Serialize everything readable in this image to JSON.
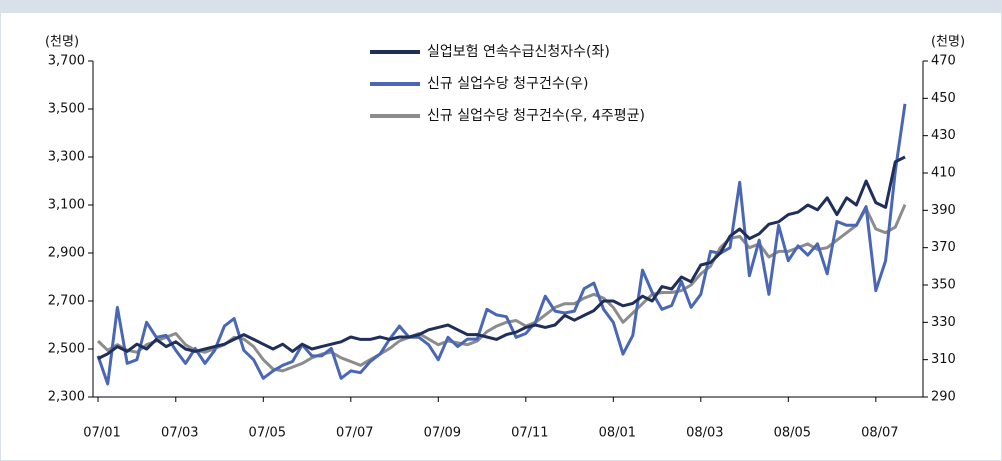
{
  "chart_data": {
    "type": "line",
    "y_label": "(천명)",
    "y2_label": "(천명)",
    "categories": [
      "07/01",
      null,
      null,
      null,
      null,
      null,
      null,
      null,
      "07/03",
      null,
      null,
      null,
      null,
      null,
      null,
      null,
      null,
      "07/05",
      null,
      null,
      null,
      null,
      null,
      null,
      null,
      null,
      "07/07",
      null,
      null,
      null,
      null,
      null,
      null,
      null,
      null,
      "07/09",
      null,
      null,
      null,
      null,
      null,
      null,
      null,
      null,
      "07/11",
      null,
      null,
      null,
      null,
      null,
      null,
      null,
      null,
      "08/01",
      null,
      null,
      null,
      null,
      null,
      null,
      null,
      null,
      "08/03",
      null,
      null,
      null,
      null,
      null,
      null,
      null,
      null,
      "08/05",
      null,
      null,
      null,
      null,
      null,
      null,
      null,
      null,
      "08/07",
      null,
      null,
      null
    ],
    "ylim": [
      2300,
      3700
    ],
    "yticks": [
      {
        "value": 2300,
        "label": "2,300"
      },
      {
        "value": 2500,
        "label": "2,500"
      },
      {
        "value": 2700,
        "label": "2,700"
      },
      {
        "value": 2900,
        "label": "2,900"
      },
      {
        "value": 3100,
        "label": "3,100"
      },
      {
        "value": 3300,
        "label": "3,300"
      },
      {
        "value": 3500,
        "label": "3,500"
      },
      {
        "value": 3700,
        "label": "3,700"
      }
    ],
    "y2lim": [
      290,
      470
    ],
    "y2ticks": [
      290,
      310,
      330,
      350,
      370,
      390,
      410,
      430,
      450,
      470
    ],
    "legend": "top",
    "series": [
      {
        "name": "실업보험 연속수급신청자수(좌)",
        "color": "#1f2f5a",
        "axis": "y",
        "values": [
          2460,
          2480,
          2510,
          2490,
          2520,
          2500,
          2540,
          2510,
          2530,
          2500,
          2490,
          2500,
          2510,
          2520,
          2540,
          2560,
          2540,
          2520,
          2500,
          2520,
          2490,
          2520,
          2500,
          2510,
          2520,
          2530,
          2550,
          2540,
          2540,
          2550,
          2540,
          2550,
          2550,
          2560,
          2580,
          2590,
          2600,
          2580,
          2560,
          2560,
          2550,
          2540,
          2560,
          2570,
          2590,
          2600,
          2590,
          2600,
          2640,
          2620,
          2640,
          2660,
          2700,
          2700,
          2680,
          2690,
          2720,
          2700,
          2760,
          2750,
          2800,
          2780,
          2850,
          2860,
          2900,
          2970,
          3000,
          2960,
          2980,
          3020,
          3030,
          3060,
          3070,
          3100,
          3080,
          3130,
          3060,
          3130,
          3100,
          3200,
          3110,
          3090,
          3280,
          3300
        ]
      },
      {
        "name": "신규 실업수당 청구건수(우)",
        "color": "#4a67b5",
        "axis": "y2",
        "values": [
          312,
          297,
          338,
          308,
          310,
          330,
          322,
          323,
          315,
          308,
          316,
          308,
          315,
          328,
          332,
          315,
          310,
          300,
          304,
          307,
          309,
          318,
          312,
          312,
          316,
          300,
          304,
          303,
          309,
          313,
          321,
          328,
          322,
          322,
          318,
          310,
          322,
          317,
          321,
          321,
          337,
          334,
          333,
          322,
          324,
          330,
          344,
          336,
          335,
          336,
          348,
          351,
          337,
          330,
          313,
          323,
          358,
          346,
          337,
          339,
          352,
          338,
          345,
          368,
          367,
          370,
          405,
          355,
          374,
          345,
          382,
          363,
          371,
          366,
          372,
          356,
          384,
          382,
          382,
          392,
          347,
          363,
          411,
          447
        ]
      },
      {
        "name": "신규 실업수당 청구건수(우, 4주평균)",
        "color": "#8c8c8c",
        "axis": "y2",
        "values": [
          320,
          315,
          318,
          315,
          314,
          318,
          320,
          322,
          324,
          318,
          315,
          314,
          316,
          318,
          322,
          321,
          317,
          310,
          305,
          304,
          306,
          308,
          311,
          313,
          314,
          311,
          309,
          307,
          310,
          313,
          316,
          320,
          322,
          324,
          321,
          318,
          320,
          319,
          318,
          320,
          325,
          328,
          330,
          331,
          328,
          330,
          334,
          338,
          340,
          340,
          343,
          345,
          343,
          338,
          330,
          335,
          340,
          345,
          346,
          346,
          347,
          350,
          356,
          360,
          370,
          375,
          376,
          370,
          372,
          365,
          368,
          368,
          370,
          372,
          369,
          370,
          374,
          378,
          382,
          391,
          380,
          378,
          381,
          393
        ]
      }
    ]
  }
}
